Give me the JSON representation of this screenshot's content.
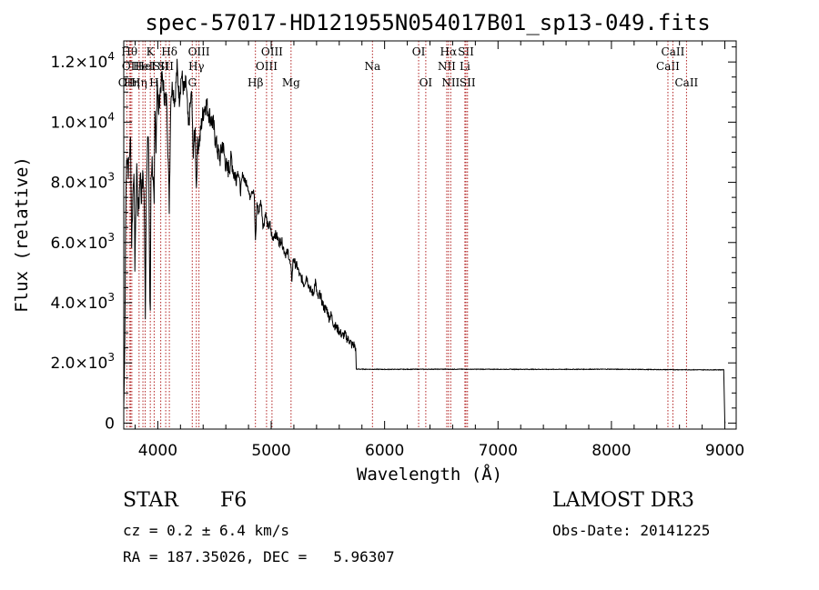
{
  "chart_data": {
    "type": "line",
    "title": "spec-57017-HD121955N054017B01_sp13-049.fits",
    "xlabel": "Wavelength (Å)",
    "ylabel": "Flux (relative)",
    "xlim": [
      3700,
      9100
    ],
    "ylim": [
      -200,
      12700
    ],
    "x_ticks": [
      {
        "value": 4000,
        "label": "4000"
      },
      {
        "value": 5000,
        "label": "5000"
      },
      {
        "value": 6000,
        "label": "6000"
      },
      {
        "value": 7000,
        "label": "7000"
      },
      {
        "value": 8000,
        "label": "8000"
      },
      {
        "value": 9000,
        "label": "9000"
      }
    ],
    "y_ticks": [
      {
        "value": 0,
        "mant": "0",
        "exp": ""
      },
      {
        "value": 2000,
        "mant": "2.0×10",
        "exp": "3"
      },
      {
        "value": 4000,
        "mant": "4.0×10",
        "exp": "3"
      },
      {
        "value": 6000,
        "mant": "6.0×10",
        "exp": "3"
      },
      {
        "value": 8000,
        "mant": "8.0×10",
        "exp": "3"
      },
      {
        "value": 10000,
        "mant": "1.0×10",
        "exp": "4"
      },
      {
        "value": 12000,
        "mant": "1.2×10",
        "exp": "4"
      }
    ],
    "series": [
      {
        "name": "spectrum",
        "color": "#000000",
        "x": [
          3700,
          3705,
          3710,
          3715,
          3720,
          3725,
          3730,
          3740,
          3750,
          3760,
          3770,
          3780,
          3790,
          3798,
          3805,
          3815,
          3825,
          3835,
          3845,
          3855,
          3860,
          3870,
          3880,
          3890,
          3900,
          3910,
          3920,
          3930,
          3934,
          3940,
          3950,
          3960,
          3968,
          3975,
          3985,
          3995,
          4005,
          4015,
          4025,
          4040,
          4060,
          4080,
          4101,
          4115,
          4130,
          4150,
          4170,
          4190,
          4210,
          4230,
          4250,
          4270,
          4290,
          4300,
          4310,
          4330,
          4340,
          4350,
          4370,
          4390,
          4410,
          4430,
          4450,
          4470,
          4490,
          4510,
          4530,
          4550,
          4570,
          4590,
          4610,
          4630,
          4650,
          4670,
          4690,
          4710,
          4730,
          4750,
          4770,
          4790,
          4810,
          4830,
          4850,
          4861,
          4875,
          4890,
          4910,
          4930,
          4950,
          4970,
          4990,
          5010,
          5030,
          5050,
          5070,
          5090,
          5110,
          5130,
          5150,
          5170,
          5183,
          5195,
          5210,
          5230,
          5250,
          5270,
          5290,
          5310,
          5330,
          5350,
          5370,
          5390,
          5410,
          5430,
          5450,
          5470,
          5490,
          5510,
          5530,
          5550,
          5570,
          5590,
          5610,
          5630,
          5650,
          5670,
          5690,
          5710,
          5730,
          5745,
          5750,
          5755,
          5760,
          5800,
          6000,
          6500,
          7000,
          7500,
          8000,
          8500,
          8800,
          8990,
          9000,
          9002
        ],
        "y": [
          500,
          1500,
          2800,
          6300,
          7800,
          8700,
          9000,
          8400,
          8900,
          9400,
          6000,
          7500,
          8600,
          5300,
          6500,
          8600,
          7100,
          7300,
          8500,
          7400,
          7800,
          8300,
          7500,
          3700,
          8100,
          9400,
          9100,
          4100,
          3500,
          8200,
          8700,
          8000,
          7000,
          10200,
          9300,
          11600,
          10200,
          10800,
          11200,
          11500,
          10800,
          10700,
          7200,
          10900,
          11200,
          10700,
          11800,
          10800,
          11600,
          11000,
          11300,
          9800,
          10700,
          10900,
          9000,
          9700,
          7800,
          9200,
          9400,
          10100,
          10500,
          10600,
          10300,
          10100,
          9900,
          9400,
          9000,
          8800,
          9300,
          8800,
          8400,
          8500,
          8800,
          8300,
          8200,
          8400,
          7700,
          8300,
          8000,
          8000,
          7500,
          7800,
          7600,
          6000,
          7300,
          7000,
          7400,
          6500,
          7000,
          6500,
          6600,
          6100,
          6300,
          6200,
          6000,
          6100,
          5800,
          5600,
          5700,
          5200,
          4800,
          5500,
          5300,
          5200,
          4900,
          4800,
          4600,
          4900,
          4600,
          4400,
          4300,
          4700,
          4100,
          4300,
          4000,
          3800,
          3800,
          3500,
          3600,
          3300,
          3200,
          3100,
          3000,
          2900,
          2950,
          2800,
          2750,
          2600,
          2600,
          2500,
          1800,
          1780,
          1790,
          1790,
          1785,
          1790,
          1788,
          1785,
          1790,
          1775,
          1770,
          1770,
          50,
          0
        ]
      }
    ],
    "lines": [
      {
        "wave": 3727,
        "label": "OII",
        "row": 2
      },
      {
        "wave": 3750,
        "label": "Hθ",
        "row": 0
      },
      {
        "wave": 3760,
        "label": "OII",
        "row": 1
      },
      {
        "wave": 3771,
        "label": "Hη",
        "row": 2
      },
      {
        "wave": 3835,
        "label": "Hη",
        "row": 2
      },
      {
        "wave": 3869,
        "label": "HeI",
        "row": 1
      },
      {
        "wave": 3889,
        "label": "HeI",
        "row": 1
      },
      {
        "wave": 3934,
        "label": "K",
        "row": 0
      },
      {
        "wave": 3968,
        "label": "H",
        "row": 2
      },
      {
        "wave": 4026,
        "label": "SII",
        "row": 1
      },
      {
        "wave": 4070,
        "label": "SII",
        "row": 1
      },
      {
        "wave": 4102,
        "label": "Hδ",
        "row": 0
      },
      {
        "wave": 4304,
        "label": "G",
        "row": 2
      },
      {
        "wave": 4340,
        "label": "Hγ",
        "row": 1
      },
      {
        "wave": 4363,
        "label": "OIII",
        "row": 0
      },
      {
        "wave": 4861,
        "label": "Hβ",
        "row": 2
      },
      {
        "wave": 4959,
        "label": "OIII",
        "row": 1
      },
      {
        "wave": 5007,
        "label": "OIII",
        "row": 0
      },
      {
        "wave": 5175,
        "label": "Mg",
        "row": 2
      },
      {
        "wave": 5893,
        "label": "Na",
        "row": 1
      },
      {
        "wave": 6300,
        "label": "OI",
        "row": 0
      },
      {
        "wave": 6363,
        "label": "OI",
        "row": 2
      },
      {
        "wave": 6548,
        "label": "NII",
        "row": 1
      },
      {
        "wave": 6563,
        "label": "Hα",
        "row": 0
      },
      {
        "wave": 6583,
        "label": "NII",
        "row": 2
      },
      {
        "wave": 6708,
        "label": "Li",
        "row": 1
      },
      {
        "wave": 6717,
        "label": "SII",
        "row": 0
      },
      {
        "wave": 6731,
        "label": "SII",
        "row": 2
      },
      {
        "wave": 8498,
        "label": "CaII",
        "row": 1
      },
      {
        "wave": 8542,
        "label": "CaII",
        "row": 0
      },
      {
        "wave": 8662,
        "label": "CaII",
        "row": 2
      }
    ],
    "line_color": "#b22222",
    "grid": false
  },
  "info": {
    "object_type": "STAR",
    "subclass": "F6",
    "survey": "LAMOST DR3",
    "cz": "cz = 0.2 ± 6.4 km/s",
    "obs_date": "Obs-Date: 20141225",
    "radec": "RA = 187.35026, DEC =   5.96307"
  }
}
